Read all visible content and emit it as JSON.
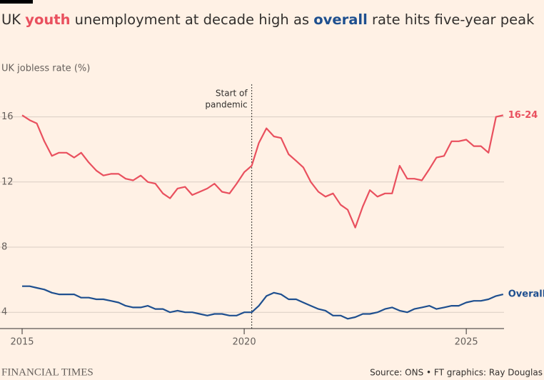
{
  "chart_data": {
    "type": "line",
    "title": [
      {
        "text": "UK "
      },
      {
        "text": "youth",
        "color": "#e9505e"
      },
      {
        "text": " unemployment at decade high as "
      },
      {
        "text": "overall",
        "color": "#1e4f8f"
      },
      {
        "text": " rate hits five-year peak"
      }
    ],
    "y_label": "UK jobless rate (%)",
    "x": [
      2015,
      2015.17,
      2015.33,
      2015.5,
      2015.67,
      2015.83,
      2016,
      2016.17,
      2016.33,
      2016.5,
      2016.67,
      2016.83,
      2017,
      2017.17,
      2017.33,
      2017.5,
      2017.67,
      2017.83,
      2018,
      2018.17,
      2018.33,
      2018.5,
      2018.67,
      2018.83,
      2019,
      2019.17,
      2019.33,
      2019.5,
      2019.67,
      2019.83,
      2020,
      2020.17,
      2020.33,
      2020.5,
      2020.67,
      2020.83,
      2021,
      2021.17,
      2021.33,
      2021.5,
      2021.67,
      2021.83,
      2022,
      2022.17,
      2022.33,
      2022.5,
      2022.67,
      2022.83,
      2023,
      2023.17,
      2023.33,
      2023.5,
      2023.67,
      2023.83,
      2024,
      2024.17,
      2024.33,
      2024.5,
      2024.67,
      2024.83,
      2025,
      2025.17,
      2025.33,
      2025.5,
      2025.67,
      2025.83
    ],
    "series": [
      {
        "name": "16-24",
        "color": "#e9505e",
        "values": [
          16.1,
          15.8,
          15.6,
          14.5,
          13.6,
          13.8,
          13.8,
          13.5,
          13.8,
          13.2,
          12.7,
          12.4,
          12.5,
          12.5,
          12.2,
          12.1,
          12.4,
          12.0,
          11.9,
          11.3,
          11.0,
          11.6,
          11.7,
          11.2,
          11.4,
          11.6,
          11.9,
          11.4,
          11.3,
          11.9,
          12.6,
          13.0,
          14.4,
          15.3,
          14.8,
          14.7,
          13.7,
          13.3,
          12.9,
          12.0,
          11.4,
          11.1,
          11.3,
          10.6,
          10.3,
          9.2,
          10.5,
          11.5,
          11.1,
          11.3,
          11.3,
          13.0,
          12.2,
          12.2,
          12.1,
          12.8,
          13.5,
          13.6,
          14.5,
          14.5,
          14.6,
          14.2,
          14.2,
          13.8,
          16.0,
          16.1
        ]
      },
      {
        "name": "Overall",
        "color": "#1e4f8f",
        "values": [
          5.6,
          5.6,
          5.5,
          5.4,
          5.2,
          5.1,
          5.1,
          5.1,
          4.9,
          4.9,
          4.8,
          4.8,
          4.7,
          4.6,
          4.4,
          4.3,
          4.3,
          4.4,
          4.2,
          4.2,
          4.0,
          4.1,
          4.0,
          4.0,
          3.9,
          3.8,
          3.9,
          3.9,
          3.8,
          3.8,
          4.0,
          4.0,
          4.4,
          5.0,
          5.2,
          5.1,
          4.8,
          4.8,
          4.6,
          4.4,
          4.2,
          4.1,
          3.8,
          3.8,
          3.6,
          3.7,
          3.9,
          3.9,
          4.0,
          4.2,
          4.3,
          4.1,
          4.0,
          4.2,
          4.3,
          4.4,
          4.2,
          4.3,
          4.4,
          4.4,
          4.6,
          4.7,
          4.7,
          4.8,
          5.0,
          5.1
        ]
      }
    ],
    "xlim": [
      2015,
      2025.85
    ],
    "xticks": [
      2015,
      2020,
      2025
    ],
    "ylim": [
      3,
      18
    ],
    "yticks": [
      4,
      8,
      12,
      16
    ],
    "grid": true,
    "annotations": [
      {
        "lines": [
          "Start of",
          "pandemic"
        ],
        "x": 2020.17
      }
    ],
    "source": "Source: ONS • FT graphics: Ray Douglas",
    "brand": "FINANCIAL TIMES"
  }
}
